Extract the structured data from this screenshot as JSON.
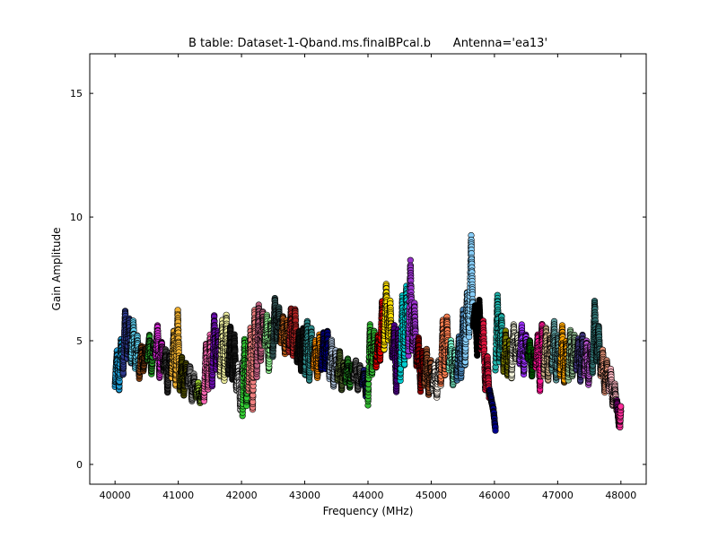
{
  "chart_data": {
    "type": "scatter",
    "title": "B table: Dataset-1-Qband.ms.finalBPcal.b      Antenna='ea13'",
    "xlabel": "Frequency (MHz)",
    "ylabel": "Gain Amplitude",
    "xlim": [
      39600,
      48400
    ],
    "ylim": [
      -0.8,
      16.6
    ],
    "xticks": [
      40000,
      41000,
      42000,
      43000,
      44000,
      45000,
      46000,
      47000,
      48000
    ],
    "xtick_labels": [
      "40000",
      "41000",
      "42000",
      "43000",
      "44000",
      "45000",
      "46000",
      "47000",
      "48000"
    ],
    "yticks": [
      0,
      5,
      10,
      15
    ],
    "ytick_labels": [
      "0",
      "5",
      "10",
      "15"
    ],
    "grid": false,
    "legend": "none",
    "marker": "circle",
    "marker_edge_color": "#000000",
    "spw_width_mhz": 128,
    "series": [
      {
        "color": "#1f9fd8",
        "x": [
          40000,
          40032,
          40064,
          40096,
          40128
        ],
        "y": [
          3.2,
          4.6,
          3.0,
          5.1,
          3.6
        ]
      },
      {
        "color": "#2e3b8f",
        "x": [
          40128,
          40160,
          40192,
          40224,
          40256
        ],
        "y": [
          3.6,
          6.2,
          4.3,
          5.9,
          4.1
        ]
      },
      {
        "color": "#5fd3f3",
        "x": [
          40256,
          40288,
          40320,
          40352,
          40384
        ],
        "y": [
          4.1,
          5.8,
          3.9,
          5.2,
          3.5
        ]
      },
      {
        "color": "#8b4513",
        "x": [
          40384,
          40416,
          40448,
          40480,
          40512
        ],
        "y": [
          3.5,
          4.8,
          3.8,
          4.7,
          4.2
        ]
      },
      {
        "color": "#2aa12a",
        "x": [
          40512,
          40544,
          40576,
          40608,
          40640
        ],
        "y": [
          4.2,
          5.2,
          3.7,
          4.9,
          4.4
        ]
      },
      {
        "color": "#d42ad4",
        "x": [
          40640,
          40672,
          40704,
          40736,
          40768
        ],
        "y": [
          4.4,
          5.6,
          3.5,
          5.0,
          3.8
        ]
      },
      {
        "color": "#3a3a3a",
        "x": [
          40768,
          40800,
          40832,
          40864,
          40896
        ],
        "y": [
          3.8,
          4.6,
          2.9,
          4.5,
          3.5
        ]
      },
      {
        "color": "#f0b030",
        "x": [
          40896,
          40928,
          40960,
          40992,
          41024
        ],
        "y": [
          3.5,
          5.4,
          3.2,
          6.2,
          3.0
        ]
      },
      {
        "color": "#4a4a00",
        "x": [
          41024,
          41056,
          41088,
          41120,
          41152
        ],
        "y": [
          3.0,
          4.3,
          2.8,
          4.1,
          3.2
        ]
      },
      {
        "color": "#8a8a8a",
        "x": [
          41152,
          41184,
          41216,
          41248,
          41280
        ],
        "y": [
          3.2,
          4.0,
          2.6,
          3.6,
          2.7
        ]
      },
      {
        "color": "#9acd32",
        "x": [
          41280,
          41312,
          41344,
          41376,
          41408
        ],
        "y": [
          2.7,
          3.3,
          2.5,
          3.0,
          2.6
        ]
      },
      {
        "color": "#ff69b4",
        "x": [
          41408,
          41440,
          41472,
          41504,
          41536
        ],
        "y": [
          2.6,
          4.9,
          3.0,
          5.2,
          3.2
        ]
      },
      {
        "color": "#6a0dad",
        "x": [
          41536,
          41568,
          41600,
          41632,
          41664
        ],
        "y": [
          3.2,
          6.0,
          3.8,
          5.4,
          3.6
        ]
      },
      {
        "color": "#f0f0a0",
        "x": [
          41664,
          41696,
          41728,
          41760,
          41792
        ],
        "y": [
          3.6,
          5.8,
          3.4,
          6.0,
          3.6
        ]
      },
      {
        "color": "#1a1a1a",
        "x": [
          41792,
          41824,
          41856,
          41888,
          41920
        ],
        "y": [
          3.6,
          5.6,
          3.4,
          5.2,
          3.0
        ]
      },
      {
        "color": "#e0e0e0",
        "x": [
          41920,
          41952,
          41984,
          42016,
          42048
        ],
        "y": [
          3.0,
          4.0,
          2.2,
          4.1,
          2.6
        ]
      },
      {
        "color": "#33cc33",
        "x": [
          42016,
          42048,
          42080,
          42112
        ],
        "y": [
          2.0,
          5.1,
          2.4,
          5.0
        ]
      },
      {
        "color": "#f08080",
        "x": [
          42112,
          42144,
          42176,
          42208,
          42240
        ],
        "y": [
          3.0,
          5.5,
          2.2,
          6.2,
          3.5
        ]
      },
      {
        "color": "#c06080",
        "x": [
          42240,
          42272,
          42304,
          42336,
          42368
        ],
        "y": [
          3.5,
          6.4,
          4.2,
          6.2,
          4.8
        ]
      },
      {
        "color": "#90ee90",
        "x": [
          42368,
          42400,
          42432,
          42464,
          42496
        ],
        "y": [
          4.8,
          6.0,
          3.8,
          5.8,
          4.4
        ]
      },
      {
        "color": "#2f4f4f",
        "x": [
          42496,
          42528,
          42560,
          42592,
          42624
        ],
        "y": [
          4.4,
          6.7,
          5.0,
          6.3,
          4.9
        ]
      },
      {
        "color": "#d2691e",
        "x": [
          42624,
          42656,
          42688,
          42720,
          42752
        ],
        "y": [
          4.9,
          6.0,
          4.5,
          5.8,
          4.6
        ]
      },
      {
        "color": "#b22222",
        "x": [
          42752,
          42784,
          42816,
          42848,
          42880
        ],
        "y": [
          4.6,
          6.3,
          4.4,
          6.3,
          4.1
        ]
      },
      {
        "color": "#0f0f0f",
        "x": [
          42880,
          42912,
          42944,
          42976,
          43008
        ],
        "y": [
          4.1,
          5.4,
          3.8,
          5.5,
          3.6
        ]
      },
      {
        "color": "#2e8b8b",
        "x": [
          43008,
          43040,
          43072,
          43104,
          43136
        ],
        "y": [
          3.6,
          5.8,
          3.4,
          5.5,
          3.9
        ]
      },
      {
        "color": "#ff8c00",
        "x": [
          43136,
          43168,
          43200,
          43232,
          43264
        ],
        "y": [
          3.9,
          5.0,
          3.5,
          5.2,
          3.8
        ]
      },
      {
        "color": "#000080",
        "x": [
          43264,
          43296,
          43328,
          43360,
          43392
        ],
        "y": [
          3.8,
          5.3,
          3.9,
          5.4,
          3.5
        ]
      },
      {
        "color": "#b0c4de",
        "x": [
          43392,
          43424,
          43456,
          43488,
          43520
        ],
        "y": [
          3.5,
          5.0,
          3.2,
          4.6,
          3.4
        ]
      },
      {
        "color": "#556b2f",
        "x": [
          43520,
          43552,
          43584,
          43616,
          43648
        ],
        "y": [
          3.4,
          4.6,
          3.0,
          4.1,
          3.3
        ]
      },
      {
        "color": "#228b22",
        "x": [
          43648,
          43680,
          43712,
          43744,
          43776
        ],
        "y": [
          3.3,
          4.3,
          3.1,
          4.0,
          3.4
        ]
      },
      {
        "color": "#696969",
        "x": [
          43776,
          43808,
          43840,
          43872,
          43904
        ],
        "y": [
          3.4,
          4.2,
          3.0,
          4.0,
          3.2
        ]
      },
      {
        "color": "#191970",
        "x": [
          43904,
          43936,
          43968,
          44000
        ],
        "y": [
          3.2,
          3.8,
          2.8,
          3.6
        ]
      },
      {
        "color": "#33bb33",
        "x": [
          44000,
          44032,
          44064,
          44096,
          44128
        ],
        "y": [
          2.4,
          5.6,
          3.6,
          5.4,
          3.9
        ]
      },
      {
        "color": "#e60000",
        "x": [
          44128,
          44160,
          44192,
          44224,
          44256
        ],
        "y": [
          3.9,
          5.2,
          4.2,
          6.6,
          4.6
        ]
      },
      {
        "color": "#ffe000",
        "x": [
          44256,
          44288,
          44320,
          44352,
          44384
        ],
        "y": [
          4.6,
          7.3,
          5.0,
          6.6,
          4.3
        ]
      },
      {
        "color": "#4b0082",
        "x": [
          44384,
          44416,
          44448,
          44480,
          44512
        ],
        "y": [
          4.3,
          5.6,
          2.9,
          5.4,
          3.4
        ]
      },
      {
        "color": "#00ced1",
        "x": [
          44512,
          44544,
          44576,
          44608,
          44640
        ],
        "y": [
          3.4,
          6.8,
          4.0,
          7.2,
          4.4
        ]
      },
      {
        "color": "#9932cc",
        "x": [
          44640,
          44672,
          44704,
          44736,
          44768
        ],
        "y": [
          4.4,
          8.2,
          4.6,
          6.5,
          4.0
        ]
      },
      {
        "color": "#8b0000",
        "x": [
          44768,
          44800,
          44832,
          44864,
          44896
        ],
        "y": [
          4.0,
          5.1,
          3.0,
          4.6,
          3.2
        ]
      },
      {
        "color": "#a0522d",
        "x": [
          44896,
          44928,
          44960,
          44992,
          45024
        ],
        "y": [
          3.2,
          4.6,
          2.8,
          4.2,
          3.0
        ]
      },
      {
        "color": "#faf0e6",
        "x": [
          45024,
          45056,
          45088,
          45120,
          45152
        ],
        "y": [
          3.0,
          4.0,
          2.7,
          4.2,
          3.2
        ]
      },
      {
        "color": "#ff7f50",
        "x": [
          45152,
          45184,
          45216,
          45248,
          45280
        ],
        "y": [
          3.2,
          5.8,
          3.6,
          6.0,
          3.8
        ]
      },
      {
        "color": "#7fffd4",
        "x": [
          45280,
          45312,
          45344,
          45376,
          45408
        ],
        "y": [
          3.8,
          5.0,
          3.2,
          4.6,
          3.4
        ]
      },
      {
        "color": "#4682b4",
        "x": [
          45408,
          45440,
          45472,
          45504,
          45536
        ],
        "y": [
          3.4,
          5.2,
          3.5,
          6.2,
          4.0
        ]
      },
      {
        "color": "#87cefa",
        "x": [
          45536,
          45568,
          45600,
          45632,
          45664
        ],
        "y": [
          4.0,
          7.0,
          5.2,
          9.2,
          5.6
        ]
      },
      {
        "color": "#000000",
        "x": [
          45664,
          45696,
          45728,
          45760,
          45792
        ],
        "y": [
          5.6,
          6.4,
          4.4,
          6.6,
          4.6
        ]
      },
      {
        "color": "#dc143c",
        "x": [
          45792,
          45824,
          45856,
          45888,
          45920
        ],
        "y": [
          4.6,
          5.8,
          3.0,
          4.4,
          2.6
        ]
      },
      {
        "color": "#00008b",
        "x": [
          45920,
          45952,
          45984,
          46016
        ],
        "y": [
          3.0,
          2.6,
          2.2,
          1.4
        ]
      },
      {
        "color": "#20b2aa",
        "x": [
          46016,
          46048,
          46080,
          46112,
          46144
        ],
        "y": [
          3.8,
          6.8,
          4.2,
          6.0,
          3.8
        ]
      },
      {
        "color": "#808000",
        "x": [
          46144,
          46176,
          46208,
          46240,
          46272
        ],
        "y": [
          3.8,
          5.4,
          3.6,
          5.0,
          3.5
        ]
      },
      {
        "color": "#f4f4dc",
        "x": [
          46272,
          46304,
          46336,
          46368,
          46400
        ],
        "y": [
          3.5,
          5.6,
          4.2,
          5.2,
          4.1
        ]
      },
      {
        "color": "#9b30ff",
        "x": [
          46400,
          46432,
          46464,
          46496,
          46528
        ],
        "y": [
          4.1,
          5.6,
          3.7,
          5.2,
          4.3
        ]
      },
      {
        "color": "#006400",
        "x": [
          46528,
          46560,
          46592,
          46624,
          46656
        ],
        "y": [
          4.3,
          5.0,
          3.6,
          4.6,
          3.9
        ]
      },
      {
        "color": "#ff1493",
        "x": [
          46656,
          46688,
          46720,
          46752,
          46784
        ],
        "y": [
          3.9,
          5.3,
          3.0,
          5.7,
          3.6
        ]
      },
      {
        "color": "#d2b48c",
        "x": [
          46784,
          46816,
          46848,
          46880,
          46912
        ],
        "y": [
          3.6,
          5.5,
          3.4,
          5.2,
          3.8
        ]
      },
      {
        "color": "#5f9ea0",
        "x": [
          46912,
          46944,
          46976,
          47008,
          47040
        ],
        "y": [
          3.8,
          5.8,
          3.4,
          5.2,
          3.6
        ]
      },
      {
        "color": "#ffa500",
        "x": [
          47040,
          47072,
          47104,
          47136,
          47168
        ],
        "y": [
          3.6,
          5.6,
          3.3,
          5.0,
          3.4
        ]
      },
      {
        "color": "#8fbc8f",
        "x": [
          47168,
          47200,
          47232,
          47264,
          47296
        ],
        "y": [
          3.4,
          5.4,
          3.6,
          5.2,
          3.8
        ]
      },
      {
        "color": "#483d8b",
        "x": [
          47296,
          47328,
          47360,
          47392,
          47424
        ],
        "y": [
          3.8,
          5.1,
          3.4,
          5.2,
          3.6
        ]
      },
      {
        "color": "#ba55d3",
        "x": [
          47424,
          47456,
          47488,
          47520,
          47552
        ],
        "y": [
          3.6,
          5.0,
          3.2,
          4.8,
          3.7
        ]
      },
      {
        "color": "#2f6f6f",
        "x": [
          47552,
          47584,
          47616,
          47648,
          47680
        ],
        "y": [
          3.7,
          6.6,
          4.2,
          5.6,
          3.6
        ]
      },
      {
        "color": "#e9967a",
        "x": [
          47680,
          47712,
          47744,
          47776,
          47808
        ],
        "y": [
          3.6,
          4.6,
          2.9,
          4.2,
          3.0
        ]
      },
      {
        "color": "#ffb6c1",
        "x": [
          47808,
          47840,
          47872,
          47904,
          47936
        ],
        "y": [
          3.0,
          3.8,
          2.4,
          3.2,
          2.1
        ]
      },
      {
        "color": "#800080",
        "x": [
          47936,
          47968,
          48000
        ],
        "y": [
          2.6,
          1.6,
          2.2
        ]
      },
      {
        "color": "#ff2d9b",
        "x": [
          47968,
          47984,
          48000
        ],
        "y": [
          2.0,
          1.5,
          2.4
        ]
      }
    ]
  }
}
